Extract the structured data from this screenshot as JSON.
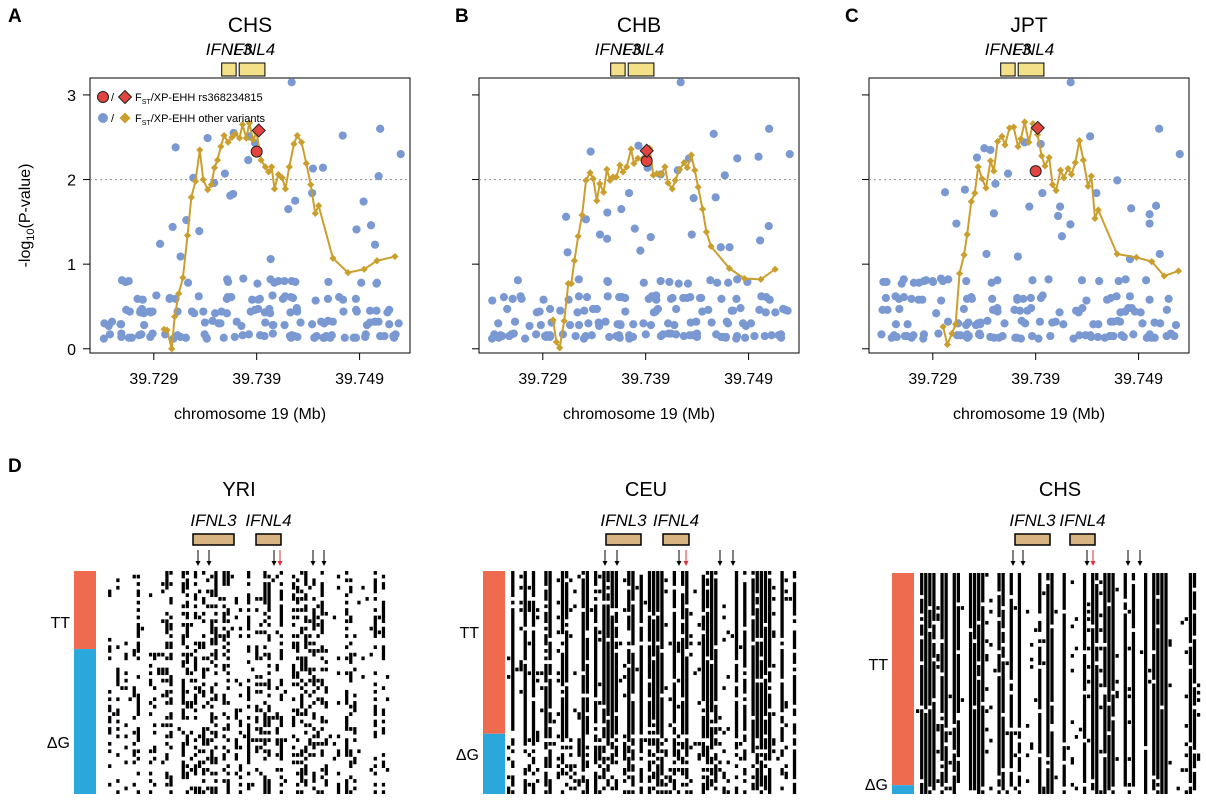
{
  "panel_labels": [
    "A",
    "B",
    "C",
    "D"
  ],
  "colors": {
    "snp_blue": "#7a99d2",
    "ehh_gold": "#cb9f2e",
    "focal_red": "#e2443f",
    "gene_yellow": "#f5e08a",
    "gene_tan": "#d9b483",
    "tt_orange": "#ef6b50",
    "dg_blue": "#2aa8dc",
    "arrow_red": "#e0303a"
  },
  "legend": {
    "row1_sep": "/",
    "row1_text": "FST/XP-EHH rs368234815",
    "row2_sep": "/",
    "row2_text": "FST/XP-EHH other variants"
  },
  "chart_data": [
    {
      "type": "scatter",
      "title": "CHS",
      "xlabel": "chromosome 19 (Mb)",
      "ylabel": "-log10(P-value)",
      "xlim": [
        39.7228,
        39.7539
      ],
      "ylim": [
        -0.05,
        3.2
      ],
      "xticks": [
        "39.729",
        "39.739",
        "39.749"
      ],
      "xtick_values": [
        39.729,
        39.739,
        39.749
      ],
      "yticks": [
        "0",
        "1",
        "2",
        "3"
      ],
      "ytick_values": [
        0,
        1,
        2,
        3
      ],
      "threshold": 2,
      "genes": [
        {
          "name": "IFNL3",
          "start": 39.7356,
          "end": 39.737
        },
        {
          "name": "IFNL4",
          "start": 39.7373,
          "end": 39.7398
        }
      ],
      "series": [
        {
          "name": "FST other variants",
          "marker": "circle",
          "seed": 11,
          "x": [],
          "y": []
        },
        {
          "name": "XP-EHH",
          "marker": "diamond",
          "seed": 12,
          "anchors": [
            [
              39.73,
              0.3
            ],
            [
              39.7307,
              0.05
            ],
            [
              39.7315,
              0.7
            ],
            [
              39.7325,
              1.6
            ],
            [
              39.7334,
              2.2
            ],
            [
              39.7343,
              1.9
            ],
            [
              39.7355,
              2.45
            ],
            [
              39.7366,
              2.55
            ],
            [
              39.7376,
              2.62
            ],
            [
              39.739,
              2.58
            ],
            [
              39.7398,
              2.2
            ],
            [
              39.7405,
              2.05
            ],
            [
              39.742,
              2.05
            ],
            [
              39.7432,
              2.6
            ],
            [
              39.7442,
              2.1
            ],
            [
              39.7452,
              1.4
            ],
            [
              39.7462,
              1.1
            ],
            [
              39.7475,
              0.9
            ],
            [
              39.7498,
              0.85
            ],
            [
              39.753,
              0.97
            ]
          ],
          "x": [],
          "y": []
        },
        {
          "name": "FST rs368234815",
          "marker": "circle",
          "x": [
            39.739
          ],
          "y": [
            2.33
          ]
        },
        {
          "name": "XP-EHH rs368234815",
          "marker": "diamond",
          "x": [
            39.7392
          ],
          "y": [
            2.58
          ]
        }
      ]
    },
    {
      "type": "scatter",
      "title": "CHB",
      "xlabel": "chromosome 19 (Mb)",
      "ylabel": "",
      "xlim": [
        39.7228,
        39.7539
      ],
      "ylim": [
        -0.05,
        3.2
      ],
      "xticks": [
        "39.729",
        "39.739",
        "39.749"
      ],
      "xtick_values": [
        39.729,
        39.739,
        39.749
      ],
      "yticks": [],
      "ytick_values": [
        0,
        1,
        2,
        3
      ],
      "threshold": 2,
      "genes": [
        {
          "name": "IFNL3",
          "start": 39.7356,
          "end": 39.737
        },
        {
          "name": "IFNL4",
          "start": 39.7373,
          "end": 39.7398
        }
      ],
      "series": [
        {
          "name": "FST other variants",
          "marker": "circle",
          "seed": 21,
          "x": [],
          "y": []
        },
        {
          "name": "XP-EHH",
          "marker": "diamond",
          "seed": 22,
          "anchors": [
            [
              39.73,
              0.3
            ],
            [
              39.7307,
              0.03
            ],
            [
              39.7315,
              0.7
            ],
            [
              39.7325,
              1.5
            ],
            [
              39.7334,
              2.0
            ],
            [
              39.7345,
              1.9
            ],
            [
              39.7358,
              2.1
            ],
            [
              39.737,
              2.3
            ],
            [
              39.7388,
              2.35
            ],
            [
              39.74,
              2.1
            ],
            [
              39.741,
              2.0
            ],
            [
              39.742,
              2.05
            ],
            [
              39.7432,
              2.35
            ],
            [
              39.7442,
              2.0
            ],
            [
              39.7452,
              1.3
            ],
            [
              39.7462,
              1.0
            ],
            [
              39.7476,
              0.72
            ],
            [
              39.75,
              0.8
            ],
            [
              39.753,
              0.8
            ]
          ],
          "x": [],
          "y": []
        },
        {
          "name": "FST rs368234815",
          "marker": "circle",
          "x": [
            39.7391
          ],
          "y": [
            2.22
          ]
        },
        {
          "name": "XP-EHH rs368234815",
          "marker": "diamond",
          "x": [
            39.7391
          ],
          "y": [
            2.34
          ]
        }
      ]
    },
    {
      "type": "scatter",
      "title": "JPT",
      "xlabel": "chromosome 19 (Mb)",
      "ylabel": "",
      "xlim": [
        39.7228,
        39.7539
      ],
      "ylim": [
        -0.05,
        3.2
      ],
      "xticks": [
        "39.729",
        "39.739",
        "39.749"
      ],
      "xtick_values": [
        39.729,
        39.739,
        39.749
      ],
      "yticks": [],
      "ytick_values": [
        0,
        1,
        2,
        3
      ],
      "threshold": 2,
      "genes": [
        {
          "name": "IFNL3",
          "start": 39.7356,
          "end": 39.737
        },
        {
          "name": "IFNL4",
          "start": 39.7373,
          "end": 39.7398
        }
      ],
      "series": [
        {
          "name": "FST other variants",
          "marker": "circle",
          "seed": 31,
          "x": [],
          "y": []
        },
        {
          "name": "XP-EHH",
          "marker": "diamond",
          "seed": 32,
          "anchors": [
            [
              39.73,
              0.3
            ],
            [
              39.7307,
              0.03
            ],
            [
              39.7315,
              0.7
            ],
            [
              39.7325,
              1.6
            ],
            [
              39.7334,
              2.1
            ],
            [
              39.7343,
              2.0
            ],
            [
              39.7357,
              2.4
            ],
            [
              39.7368,
              2.5
            ],
            [
              39.7378,
              2.6
            ],
            [
              39.739,
              2.58
            ],
            [
              39.7398,
              2.15
            ],
            [
              39.741,
              2.0
            ],
            [
              39.742,
              2.05
            ],
            [
              39.7432,
              2.4
            ],
            [
              39.7442,
              2.0
            ],
            [
              39.7452,
              1.45
            ],
            [
              39.7462,
              1.15
            ],
            [
              39.7478,
              0.98
            ],
            [
              39.75,
              1.0
            ],
            [
              39.753,
              1.05
            ]
          ],
          "x": [],
          "y": []
        },
        {
          "name": "FST rs368234815",
          "marker": "circle",
          "x": [
            39.739
          ],
          "y": [
            2.1
          ]
        },
        {
          "name": "XP-EHH rs368234815",
          "marker": "diamond",
          "x": [
            39.7392
          ],
          "y": [
            2.61
          ]
        }
      ]
    },
    {
      "type": "heatmap",
      "title": "YRI",
      "genes": [
        {
          "name": "IFNL3"
        },
        {
          "name": "IFNL4"
        }
      ],
      "groups": [
        {
          "name": "TT",
          "color": "#ef6b50",
          "fraction": 0.35
        },
        {
          "name": "ΔG",
          "color": "#2aa8dc",
          "fraction": 0.65
        }
      ],
      "seed": 41
    },
    {
      "type": "heatmap",
      "title": "CEU",
      "genes": [
        {
          "name": "IFNL3"
        },
        {
          "name": "IFNL4"
        }
      ],
      "groups": [
        {
          "name": "TT",
          "color": "#ef6b50",
          "fraction": 0.73
        },
        {
          "name": "ΔG",
          "color": "#2aa8dc",
          "fraction": 0.27
        }
      ],
      "seed": 42
    },
    {
      "type": "heatmap",
      "title": "CHS",
      "genes": [
        {
          "name": "IFNL3"
        },
        {
          "name": "IFNL4"
        }
      ],
      "groups": [
        {
          "name": "TT",
          "color": "#ef6b50",
          "fraction": 0.96
        },
        {
          "name": "ΔG",
          "color": "#2aa8dc",
          "fraction": 0.04
        }
      ],
      "seed": 43
    }
  ]
}
